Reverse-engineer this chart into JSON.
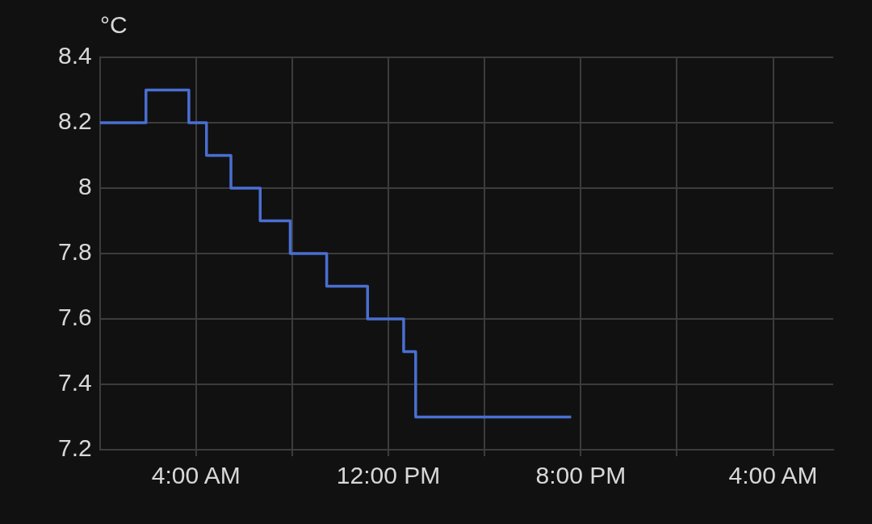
{
  "chart_data": {
    "type": "step",
    "ylabel": "°C",
    "series": [
      {
        "color": "#4a6fd2",
        "x": [
          "--01-01T00:00",
          "--01-01T01:55",
          "--01-01T03:42",
          "--01-01T04:26",
          "--01-01T05:27",
          "--01-01T06:40",
          "--01-01T07:55",
          "--01-01T09:26",
          "--01-01T11:08",
          "--01-01T12:38",
          "--01-01T13:08",
          "--01-01T19:36"
        ],
        "values": [
          8.2,
          8.3,
          8.2,
          8.1,
          8.0,
          7.9,
          7.8,
          7.7,
          7.6,
          7.5,
          7.3,
          7.3
        ]
      }
    ],
    "xlim": [
      "--01-01T00:00",
      "--01-02T06:30"
    ],
    "xticks": [
      {
        "value": "--01-01T04:00",
        "label": "4:00 AM"
      },
      {
        "value": "--01-01T08:00",
        "label": null
      },
      {
        "value": "--01-01T12:00",
        "label": "12:00 PM"
      },
      {
        "value": "--01-01T16:00",
        "label": null
      },
      {
        "value": "--01-01T20:00",
        "label": "8:00 PM"
      },
      {
        "value": "--01-02T00:00",
        "label": null
      },
      {
        "value": "--01-02T04:00",
        "label": "4:00 AM"
      }
    ],
    "ylim": [
      7.2,
      8.4
    ],
    "yticks": [
      7.2,
      7.4,
      7.6,
      7.8,
      8,
      8.2,
      8.4
    ],
    "grid": true,
    "legend": false,
    "marker": "none"
  }
}
